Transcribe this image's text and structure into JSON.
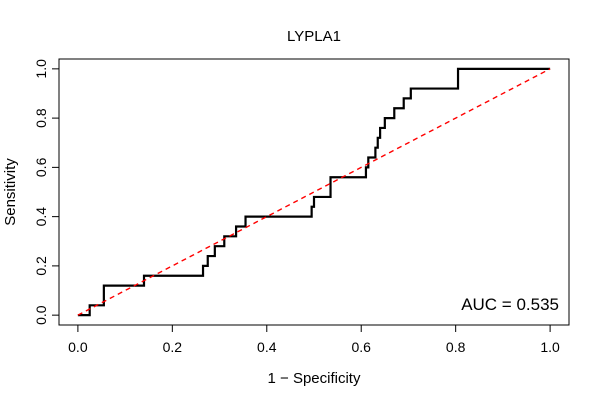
{
  "chart_data": {
    "type": "line",
    "title": "LYPLA1",
    "xlabel": "1 − Specificity",
    "ylabel": "Sensitivity",
    "xlim": [
      -0.04,
      1.04
    ],
    "ylim": [
      -0.04,
      1.04
    ],
    "x_ticks": [
      0.0,
      0.2,
      0.4,
      0.6,
      0.8,
      1.0
    ],
    "x_tick_labels": [
      "0.0",
      "0.2",
      "0.4",
      "0.6",
      "0.8",
      "1.0"
    ],
    "y_ticks": [
      0.0,
      0.2,
      0.4,
      0.6,
      0.8,
      1.0
    ],
    "y_tick_labels": [
      "0.0",
      "0.2",
      "0.4",
      "0.6",
      "0.8",
      "1.0"
    ],
    "grid": false,
    "annotation": "AUC = 0.535",
    "series": [
      {
        "style": "step",
        "color": "#000000",
        "x": [
          0.0,
          0.025,
          0.025,
          0.055,
          0.055,
          0.14,
          0.14,
          0.265,
          0.265,
          0.275,
          0.275,
          0.29,
          0.29,
          0.31,
          0.31,
          0.335,
          0.335,
          0.355,
          0.355,
          0.37,
          0.37,
          0.375,
          0.375,
          0.495,
          0.495,
          0.5,
          0.5,
          0.535,
          0.535,
          0.61,
          0.61,
          0.615,
          0.615,
          0.63,
          0.63,
          0.635,
          0.635,
          0.64,
          0.64,
          0.65,
          0.65,
          0.67,
          0.67,
          0.69,
          0.69,
          0.705,
          0.705,
          0.805,
          0.805,
          1.0
        ],
        "y": [
          0.0,
          0.0,
          0.04,
          0.04,
          0.12,
          0.12,
          0.16,
          0.16,
          0.2,
          0.2,
          0.24,
          0.24,
          0.28,
          0.28,
          0.32,
          0.32,
          0.36,
          0.36,
          0.4,
          0.4,
          0.4,
          0.4,
          0.4,
          0.4,
          0.44,
          0.44,
          0.48,
          0.48,
          0.56,
          0.56,
          0.6,
          0.6,
          0.64,
          0.64,
          0.68,
          0.68,
          0.72,
          0.72,
          0.76,
          0.76,
          0.8,
          0.8,
          0.84,
          0.84,
          0.88,
          0.88,
          0.92,
          0.92,
          1.0,
          1.0
        ]
      },
      {
        "style": "dashed",
        "color": "#ff0000",
        "x": [
          0.0,
          1.0
        ],
        "y": [
          0.0,
          1.0
        ]
      }
    ]
  }
}
